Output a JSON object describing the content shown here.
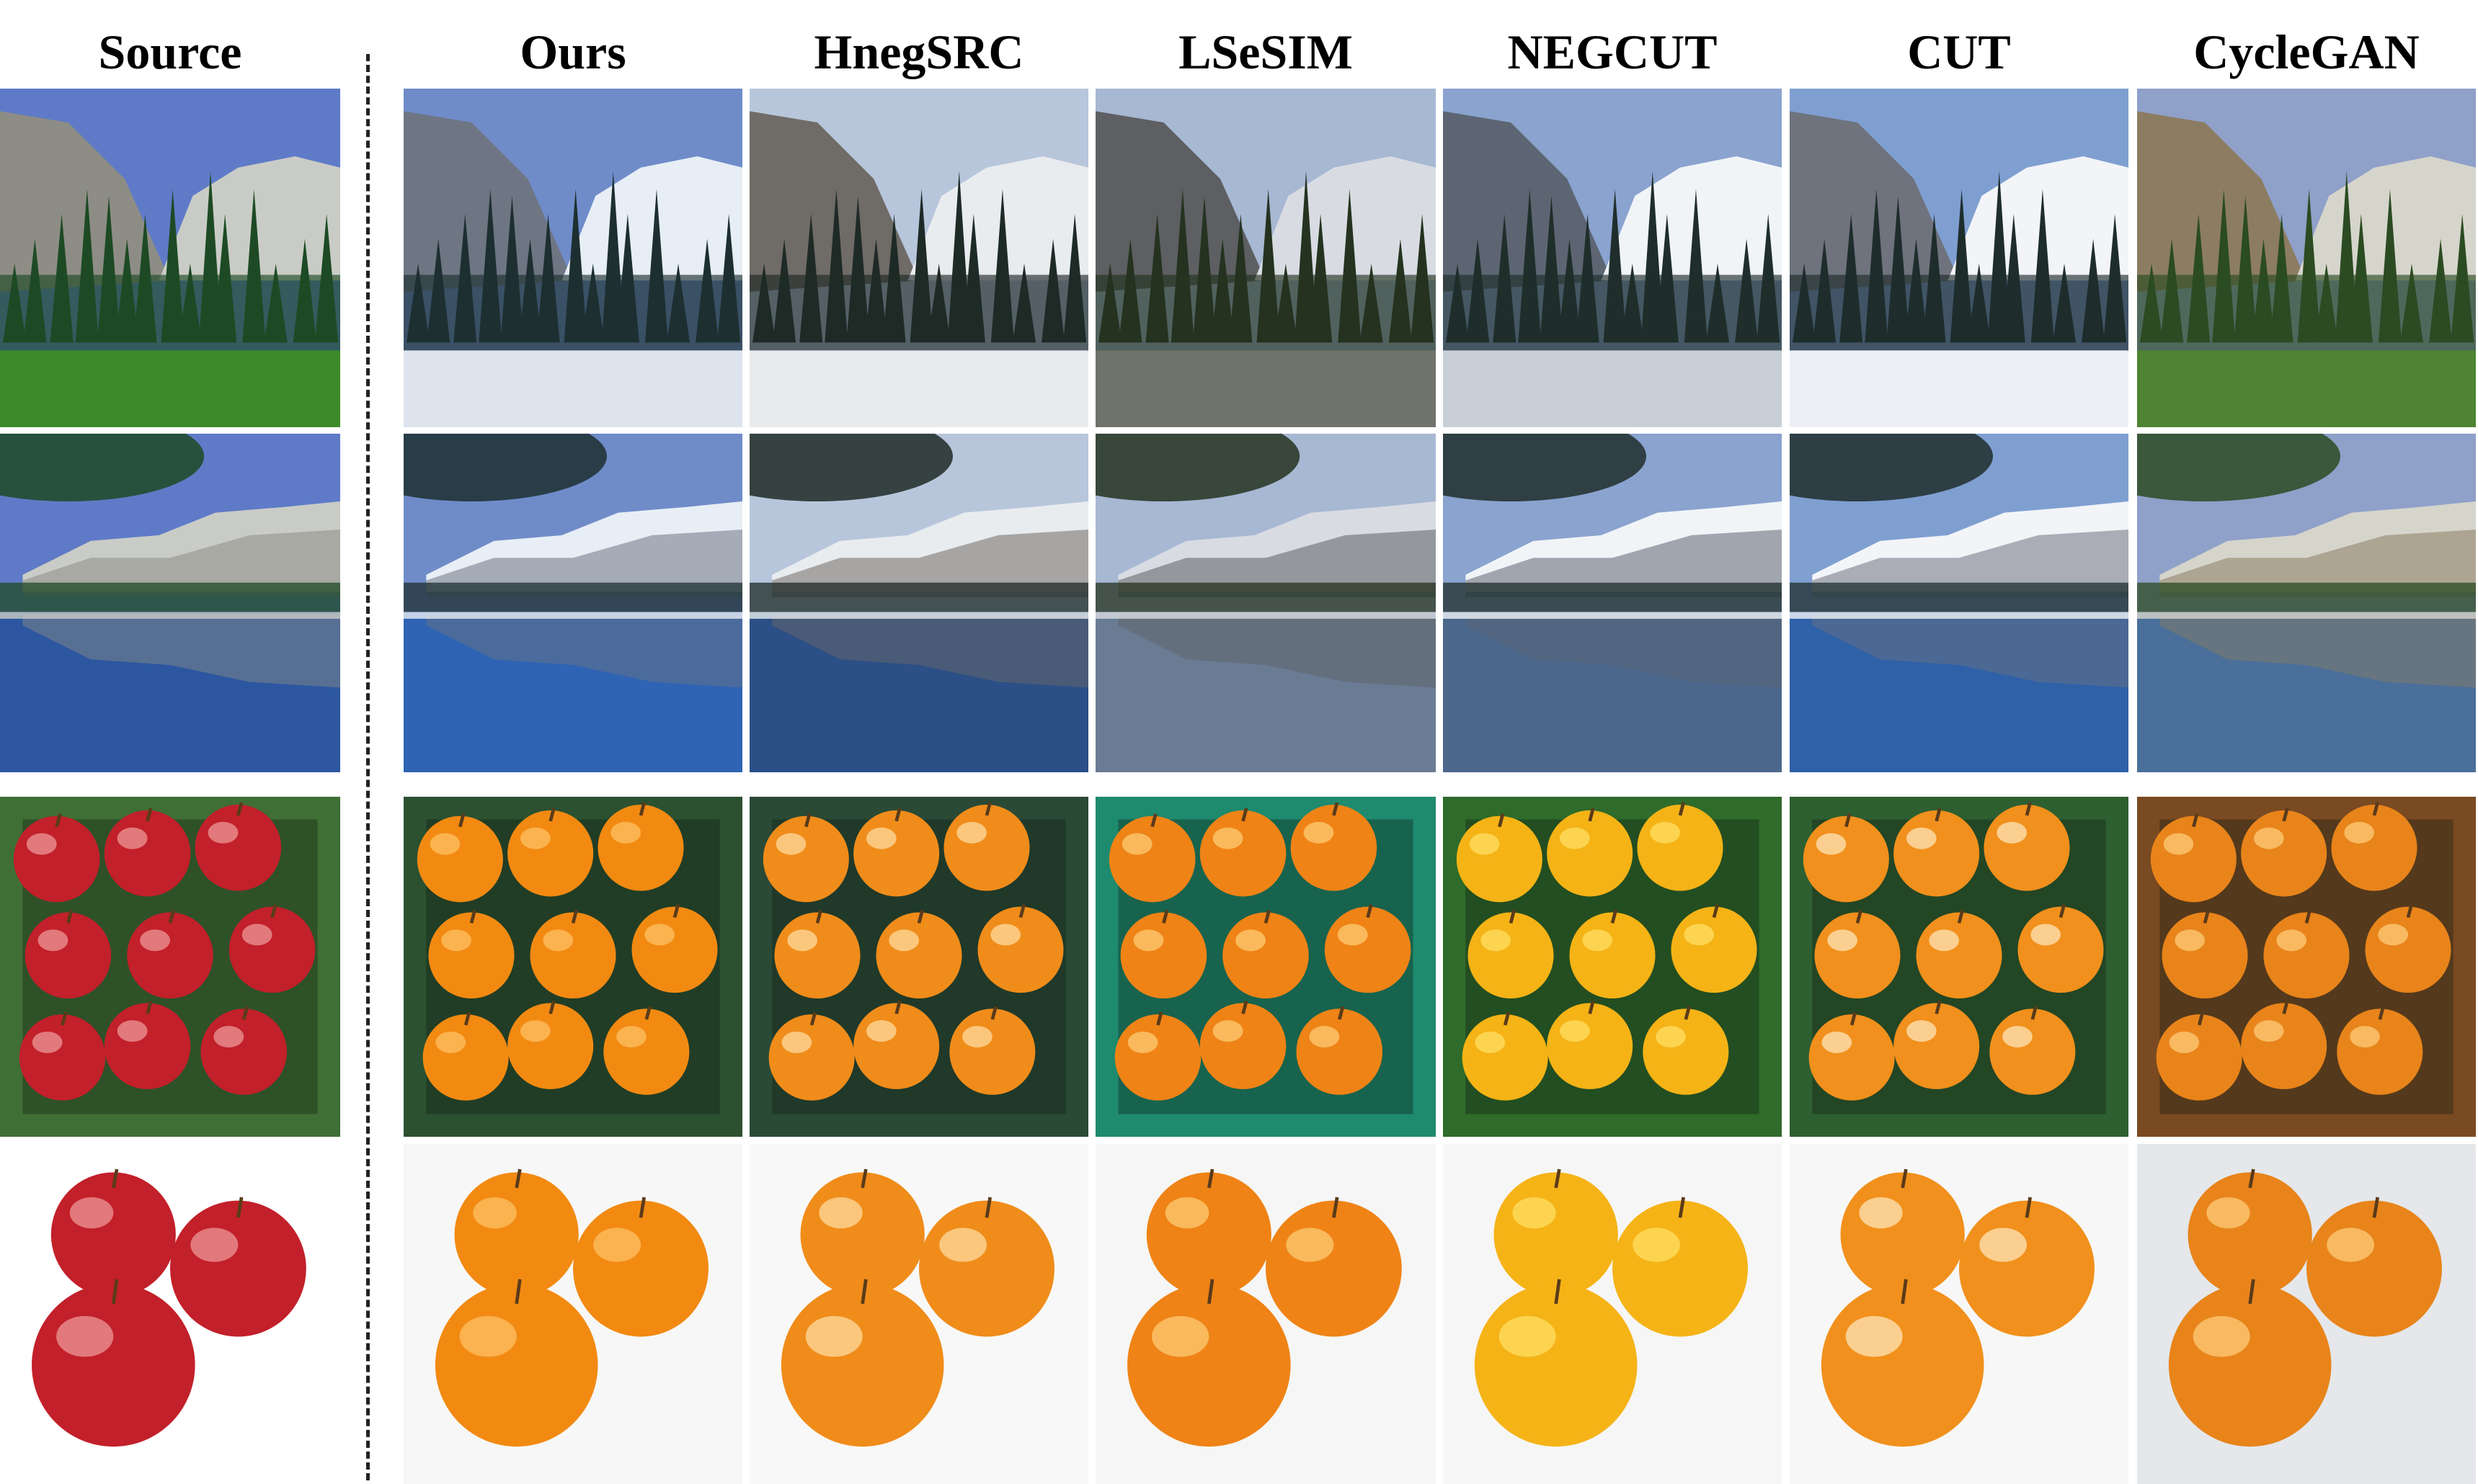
{
  "columns": [
    {
      "id": "source",
      "label": "Source"
    },
    {
      "id": "ours",
      "label": "Ours"
    },
    {
      "id": "hnegsrc",
      "label": "HnegSRC"
    },
    {
      "id": "lsesim",
      "label": "LSeSIM"
    },
    {
      "id": "negcut",
      "label": "NEGCUT"
    },
    {
      "id": "cut",
      "label": "CUT"
    },
    {
      "id": "cyclegan",
      "label": "CycleGAN"
    }
  ],
  "rows": [
    {
      "id": "mountain-forest",
      "scene": "mountain"
    },
    {
      "id": "lake-reflection",
      "scene": "lake"
    },
    {
      "id": "fruit-cluster",
      "scene": "cluster"
    },
    {
      "id": "fruit-trio",
      "scene": "trio"
    }
  ],
  "palettes": {
    "source": {
      "sky": "#5f7bc8",
      "rock": "#8d8d86",
      "snow": "#c9ccc6",
      "tree": "#1d4a24",
      "ground": "#3d8a2a",
      "water": "#2c57a0",
      "fruit": "#c2202a",
      "leaf": "#3f6f35",
      "bg": "#ffffff",
      "hl": "#f0a0a0"
    },
    "ours": {
      "sky": "#6f8cc9",
      "rock": "#6e7583",
      "snow": "#e8eef5",
      "tree": "#1d2f30",
      "ground": "#dde4ee",
      "water": "#2f63b3",
      "fruit": "#f28a12",
      "leaf": "#2b5130",
      "bg": "#f7f7f7",
      "hl": "#ffc46a"
    },
    "hnegsrc": {
      "sky": "#b8c6dc",
      "rock": "#6f6b66",
      "snow": "#e9ecef",
      "tree": "#1e2a26",
      "ground": "#e7ebee",
      "water": "#2b4f86",
      "fruit": "#f08c1a",
      "leaf": "#2a4a36",
      "bg": "#f8f8f8",
      "hl": "#ffe0a8"
    },
    "lsesim": {
      "sky": "#a7b8d3",
      "rock": "#5d5f63",
      "snow": "#d8dce2",
      "tree": "#24321f",
      "ground": "#707369",
      "water": "#6a7c94",
      "fruit": "#ef8316",
      "leaf": "#1e8a6e",
      "bg": "#f6f6f6",
      "hl": "#ffd07a"
    },
    "negcut": {
      "sky": "#8aa3cf",
      "rock": "#5d6573",
      "snow": "#f1f4f7",
      "tree": "#1f2e2a",
      "ground": "#c9cfd6",
      "water": "#4b678c",
      "fruit": "#f5b316",
      "leaf": "#2f6b2a",
      "bg": "#f6f6f6",
      "hl": "#ffe36a"
    },
    "cut": {
      "sky": "#7f9fd1",
      "rock": "#6f737d",
      "snow": "#f2f4f8",
      "tree": "#1e2d2c",
      "ground": "#ecf0f4",
      "water": "#2f61a8",
      "fruit": "#f1901c",
      "leaf": "#2e5f31",
      "bg": "#f7f7f7",
      "hl": "#ffe9c2"
    },
    "cyclegan": {
      "sky": "#8fa0c9",
      "rock": "#8c7d62",
      "snow": "#d6d5cc",
      "tree": "#2b4b22",
      "ground": "#4f8433",
      "water": "#4a6f9a",
      "fruit": "#e8841a",
      "leaf": "#7a4a22",
      "bg": "#e5e7ea",
      "hl": "#ffd080"
    }
  }
}
